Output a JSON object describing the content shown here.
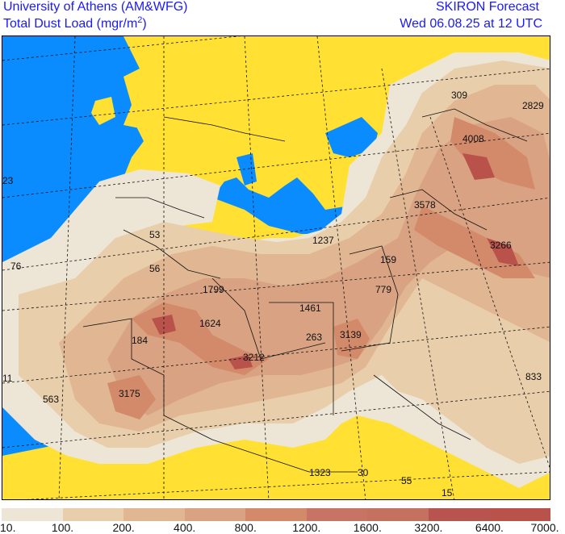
{
  "header": {
    "institution": "University of Athens (AM&WFG)",
    "product_prefix": "Total Dust Load (mgr/m",
    "product_sup": "2",
    "product_suffix": ")",
    "forecast": "SKIRON Forecast",
    "valid_time": "Wed 06.08.25 at 12 UTC"
  },
  "map_labels": [
    {
      "text": "309"
    },
    {
      "text": "2829"
    },
    {
      "text": "4008"
    },
    {
      "text": "23"
    },
    {
      "text": "3578"
    },
    {
      "text": "53"
    },
    {
      "text": "1237"
    },
    {
      "text": "3266"
    },
    {
      "text": "76"
    },
    {
      "text": "56"
    },
    {
      "text": "159"
    },
    {
      "text": "1799"
    },
    {
      "text": "779"
    },
    {
      "text": "1461"
    },
    {
      "text": "1624"
    },
    {
      "text": "184"
    },
    {
      "text": "263"
    },
    {
      "text": "3139"
    },
    {
      "text": "3212"
    },
    {
      "text": "833"
    },
    {
      "text": "11"
    },
    {
      "text": "3175"
    },
    {
      "text": "563"
    },
    {
      "text": "1323"
    },
    {
      "text": "30"
    },
    {
      "text": "55"
    },
    {
      "text": "15"
    }
  ],
  "legend": {
    "colors": [
      "#ede6d6",
      "#e8ceaa",
      "#e1b693",
      "#d8a283",
      "#d28a6a",
      "#c87464",
      "#c5715f",
      "#b85450",
      "#b8524b"
    ],
    "ticks": [
      "10.",
      "100.",
      "200.",
      "400.",
      "800.",
      "1200.",
      "1600.",
      "3200.",
      "6400.",
      "7000."
    ]
  },
  "map_colors": {
    "sea": "#0a8cff",
    "land": "#ffe033",
    "dust_light": "#ede6d6"
  }
}
